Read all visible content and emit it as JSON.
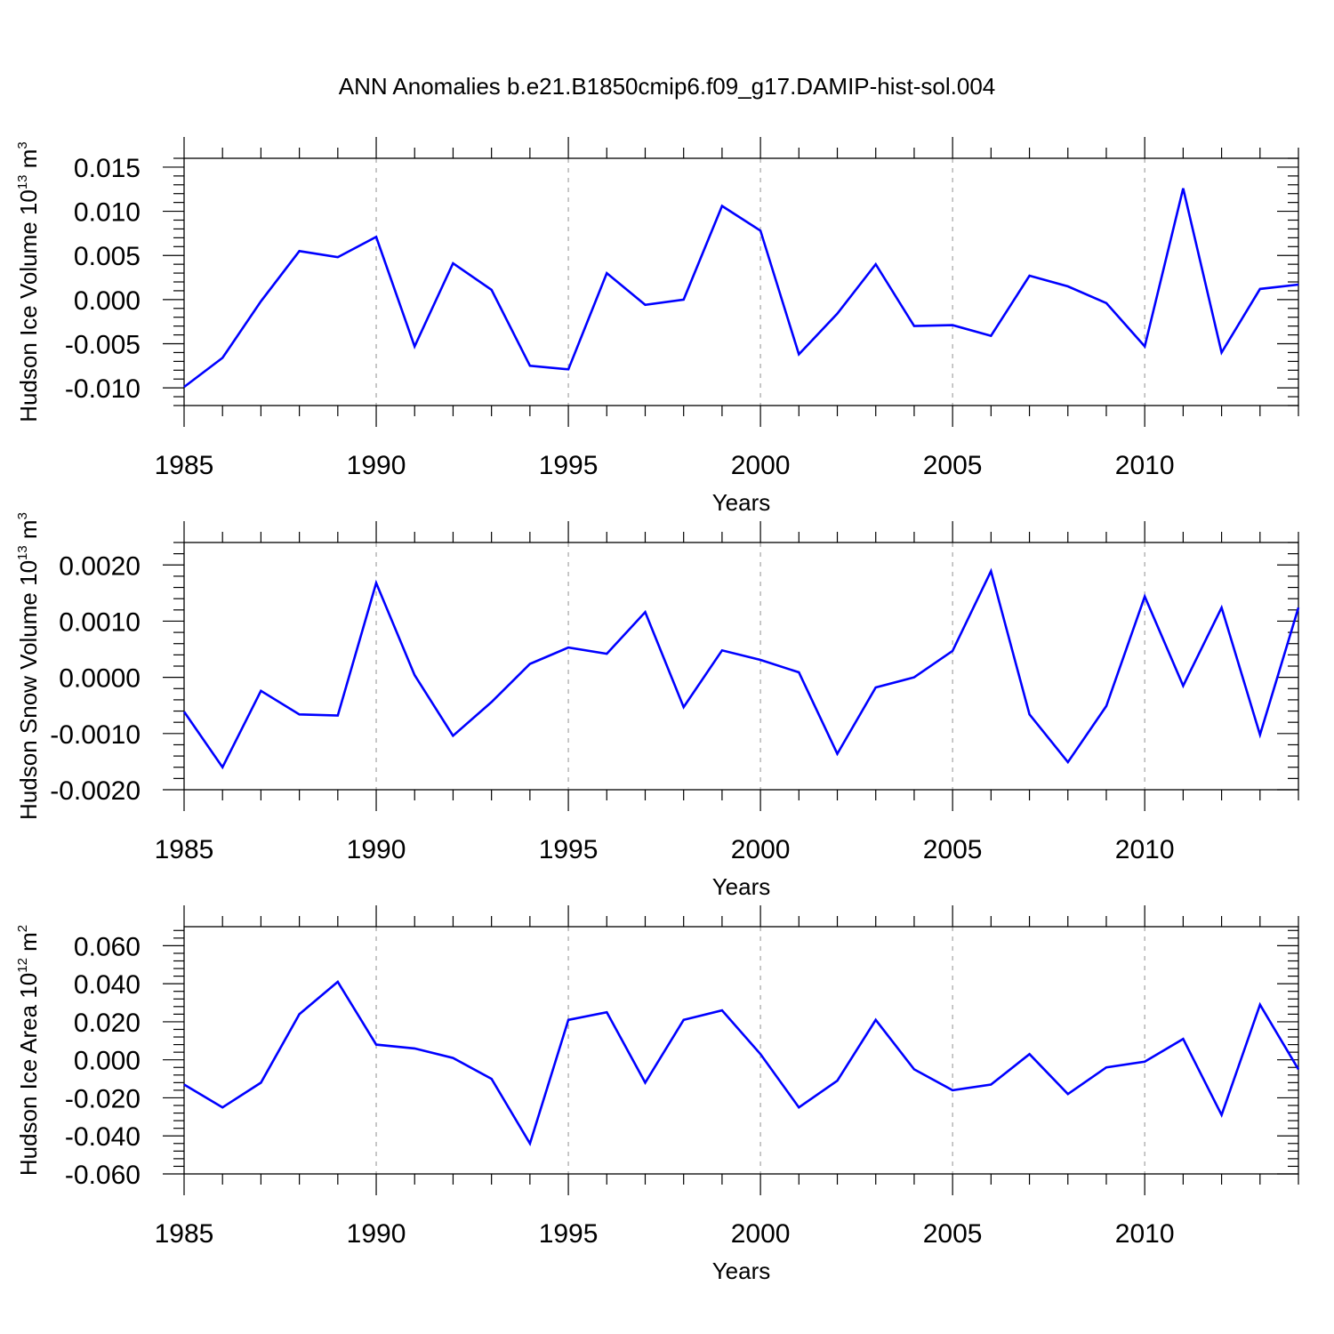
{
  "figure": {
    "title": "ANN Anomalies b.e21.B1850cmip6.f09_g17.DAMIP-hist-sol.004"
  },
  "chart_data": [
    {
      "type": "line",
      "ylabel_parts": [
        "Hudson Ice Volume 10",
        "13",
        " m",
        "3"
      ],
      "xlabel": "Years",
      "xlim": [
        1985,
        2014
      ],
      "ylim": [
        -0.012,
        0.016
      ],
      "x_ticks": [
        1985,
        1990,
        1995,
        2000,
        2005,
        2010
      ],
      "y_ticks": [
        0.015,
        0.01,
        0.005,
        0.0,
        -0.005,
        -0.01
      ],
      "y_tick_labels": [
        "0.015",
        "0.010",
        "0.005",
        "0.000",
        "-0.005",
        "-0.010"
      ],
      "grid": "dashed vertical at major x ticks",
      "color": "#0000ff",
      "x": [
        1985,
        1986,
        1987,
        1988,
        1989,
        1990,
        1991,
        1992,
        1993,
        1994,
        1995,
        1996,
        1997,
        1998,
        1999,
        2000,
        2001,
        2002,
        2003,
        2004,
        2005,
        2006,
        2007,
        2008,
        2009,
        2010,
        2011,
        2012,
        2013,
        2014
      ],
      "values": [
        -0.0099,
        -0.0066,
        -0.0002,
        0.0055,
        0.0048,
        0.0071,
        -0.0053,
        0.0041,
        0.0011,
        -0.0075,
        -0.0079,
        0.003,
        -0.0006,
        0.0,
        0.0106,
        0.0078,
        -0.0062,
        -0.0016,
        0.004,
        -0.003,
        -0.0029,
        -0.0041,
        0.0027,
        0.0015,
        -0.0004,
        -0.0053,
        0.0126,
        -0.006,
        0.0012,
        0.0017
      ]
    },
    {
      "type": "line",
      "ylabel_parts": [
        "Hudson Snow Volume 10",
        "13",
        " m",
        "3"
      ],
      "xlabel": "Years",
      "xlim": [
        1985,
        2014
      ],
      "ylim": [
        -0.002,
        0.0024
      ],
      "x_ticks": [
        1985,
        1990,
        1995,
        2000,
        2005,
        2010
      ],
      "y_ticks": [
        0.002,
        0.001,
        0.0,
        -0.001,
        -0.002
      ],
      "y_tick_labels": [
        "0.0020",
        "0.0010",
        "0.0000",
        "-0.0010",
        "-0.0020"
      ],
      "grid": "dashed vertical at major x ticks",
      "color": "#0000ff",
      "x": [
        1985,
        1986,
        1987,
        1988,
        1989,
        1990,
        1991,
        1992,
        1993,
        1994,
        1995,
        1996,
        1997,
        1998,
        1999,
        2000,
        2001,
        2002,
        2003,
        2004,
        2005,
        2006,
        2007,
        2008,
        2009,
        2010,
        2011,
        2012,
        2013,
        2014
      ],
      "values": [
        -0.00061,
        -0.0016,
        -0.00024,
        -0.00066,
        -0.00068,
        0.00168,
        4e-05,
        -0.00104,
        -0.00044,
        0.00024,
        0.00053,
        0.00042,
        0.00116,
        -0.00053,
        0.00048,
        0.00031,
        9e-05,
        -0.00136,
        -0.00018,
        0.0,
        0.00047,
        0.00189,
        -0.00066,
        -0.00151,
        -0.00051,
        0.00144,
        -0.00015,
        0.00124,
        -0.00102,
        0.00124
      ]
    },
    {
      "type": "line",
      "ylabel_parts": [
        "Hudson Ice Area 10",
        "12",
        " m",
        "2"
      ],
      "xlabel": "Years",
      "xlim": [
        1985,
        2014
      ],
      "ylim": [
        -0.06,
        0.07
      ],
      "x_ticks": [
        1985,
        1990,
        1995,
        2000,
        2005,
        2010
      ],
      "y_ticks": [
        0.06,
        0.04,
        0.02,
        0.0,
        -0.02,
        -0.04,
        -0.06
      ],
      "y_tick_labels": [
        "0.060",
        "0.040",
        "0.020",
        "0.000",
        "-0.020",
        "-0.040",
        "-0.060"
      ],
      "grid": "dashed vertical at major x ticks",
      "color": "#0000ff",
      "x": [
        1985,
        1986,
        1987,
        1988,
        1989,
        1990,
        1991,
        1992,
        1993,
        1994,
        1995,
        1996,
        1997,
        1998,
        1999,
        2000,
        2001,
        2002,
        2003,
        2004,
        2005,
        2006,
        2007,
        2008,
        2009,
        2010,
        2011,
        2012,
        2013,
        2014
      ],
      "values": [
        -0.013,
        -0.025,
        -0.012,
        0.024,
        0.041,
        0.008,
        0.006,
        0.001,
        -0.01,
        -0.044,
        0.021,
        0.025,
        -0.012,
        0.021,
        0.026,
        0.003,
        -0.025,
        -0.011,
        0.021,
        -0.005,
        -0.016,
        -0.013,
        0.003,
        -0.018,
        -0.004,
        -0.001,
        0.011,
        -0.029,
        0.029,
        -0.005
      ]
    }
  ]
}
